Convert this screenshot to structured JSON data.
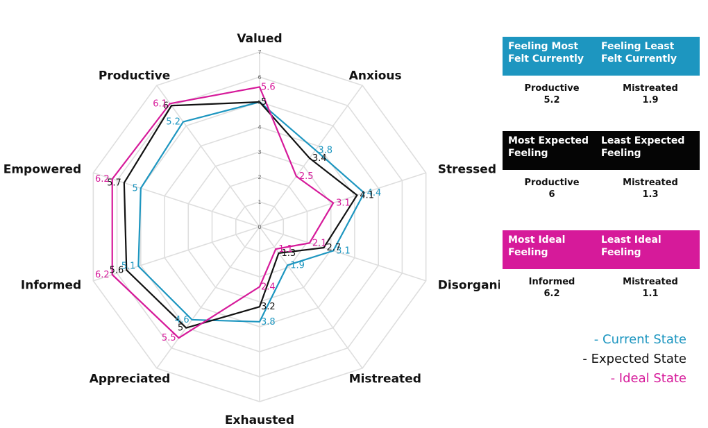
{
  "chart_data": {
    "type": "radar",
    "axes": [
      "Valued",
      "Anxious",
      "Stressed",
      "Disorganised",
      "Mistreated",
      "Exhausted",
      "Appreciated",
      "Informed",
      "Empowered",
      "Productive"
    ],
    "rlim": [
      0,
      7
    ],
    "ticks": [
      0,
      1,
      2,
      3,
      4,
      5,
      6,
      7
    ],
    "tick_labels": [
      "0",
      "1",
      "2",
      "3",
      "4",
      "5",
      "6",
      "7"
    ],
    "grid": true,
    "series": [
      {
        "key": "current",
        "color": "#1d96c0",
        "values": [
          5,
          3.8,
          4.4,
          3.1,
          1.9,
          3.8,
          4.6,
          5.1,
          5,
          5.2
        ],
        "labels": [
          "5",
          "3.8",
          "4.4",
          "3.1",
          "1.9",
          "3.8",
          "4.6",
          "5.1",
          "5",
          "5.2"
        ]
      },
      {
        "key": "expected",
        "color": "#111111",
        "values": [
          5,
          3.4,
          4.1,
          2.7,
          1.3,
          3.2,
          5,
          5.6,
          5.7,
          6
        ],
        "labels": [
          "5",
          "3.4",
          "4.1",
          "2.7",
          "1.3",
          "3.2",
          "5",
          "5.6",
          "5.7",
          "6"
        ]
      },
      {
        "key": "ideal",
        "color": "#d61a9a",
        "values": [
          5.6,
          2.5,
          3.1,
          2.1,
          1.1,
          2.4,
          5.5,
          6.2,
          6.2,
          6.1
        ],
        "labels": [
          "5.6",
          "2.5",
          "3.1",
          "2.1",
          "1.1",
          "2.4",
          "5.5",
          "6.2",
          "6.2",
          "6.1"
        ]
      }
    ]
  },
  "panels": {
    "current": {
      "most_title": "Feeling Most Felt Currently",
      "least_title": "Feeling Least Felt Currently",
      "most_name": "Productive",
      "most_value": "5.2",
      "least_name": "Mistreated",
      "least_value": "1.9"
    },
    "expected": {
      "most_title": "Most Expected Feeling",
      "least_title": "Least Expected Feeling",
      "most_name": "Productive",
      "most_value": "6",
      "least_name": "Mistreated",
      "least_value": "1.3"
    },
    "ideal": {
      "most_title": "Most Ideal Feeling",
      "least_title": "Least Ideal Feeling",
      "most_name": "Informed",
      "most_value": "6.2",
      "least_name": "Mistreated",
      "least_value": "1.1"
    }
  },
  "legend": {
    "current": "- Current State",
    "expected": "- Expected State",
    "ideal": "- Ideal State"
  }
}
